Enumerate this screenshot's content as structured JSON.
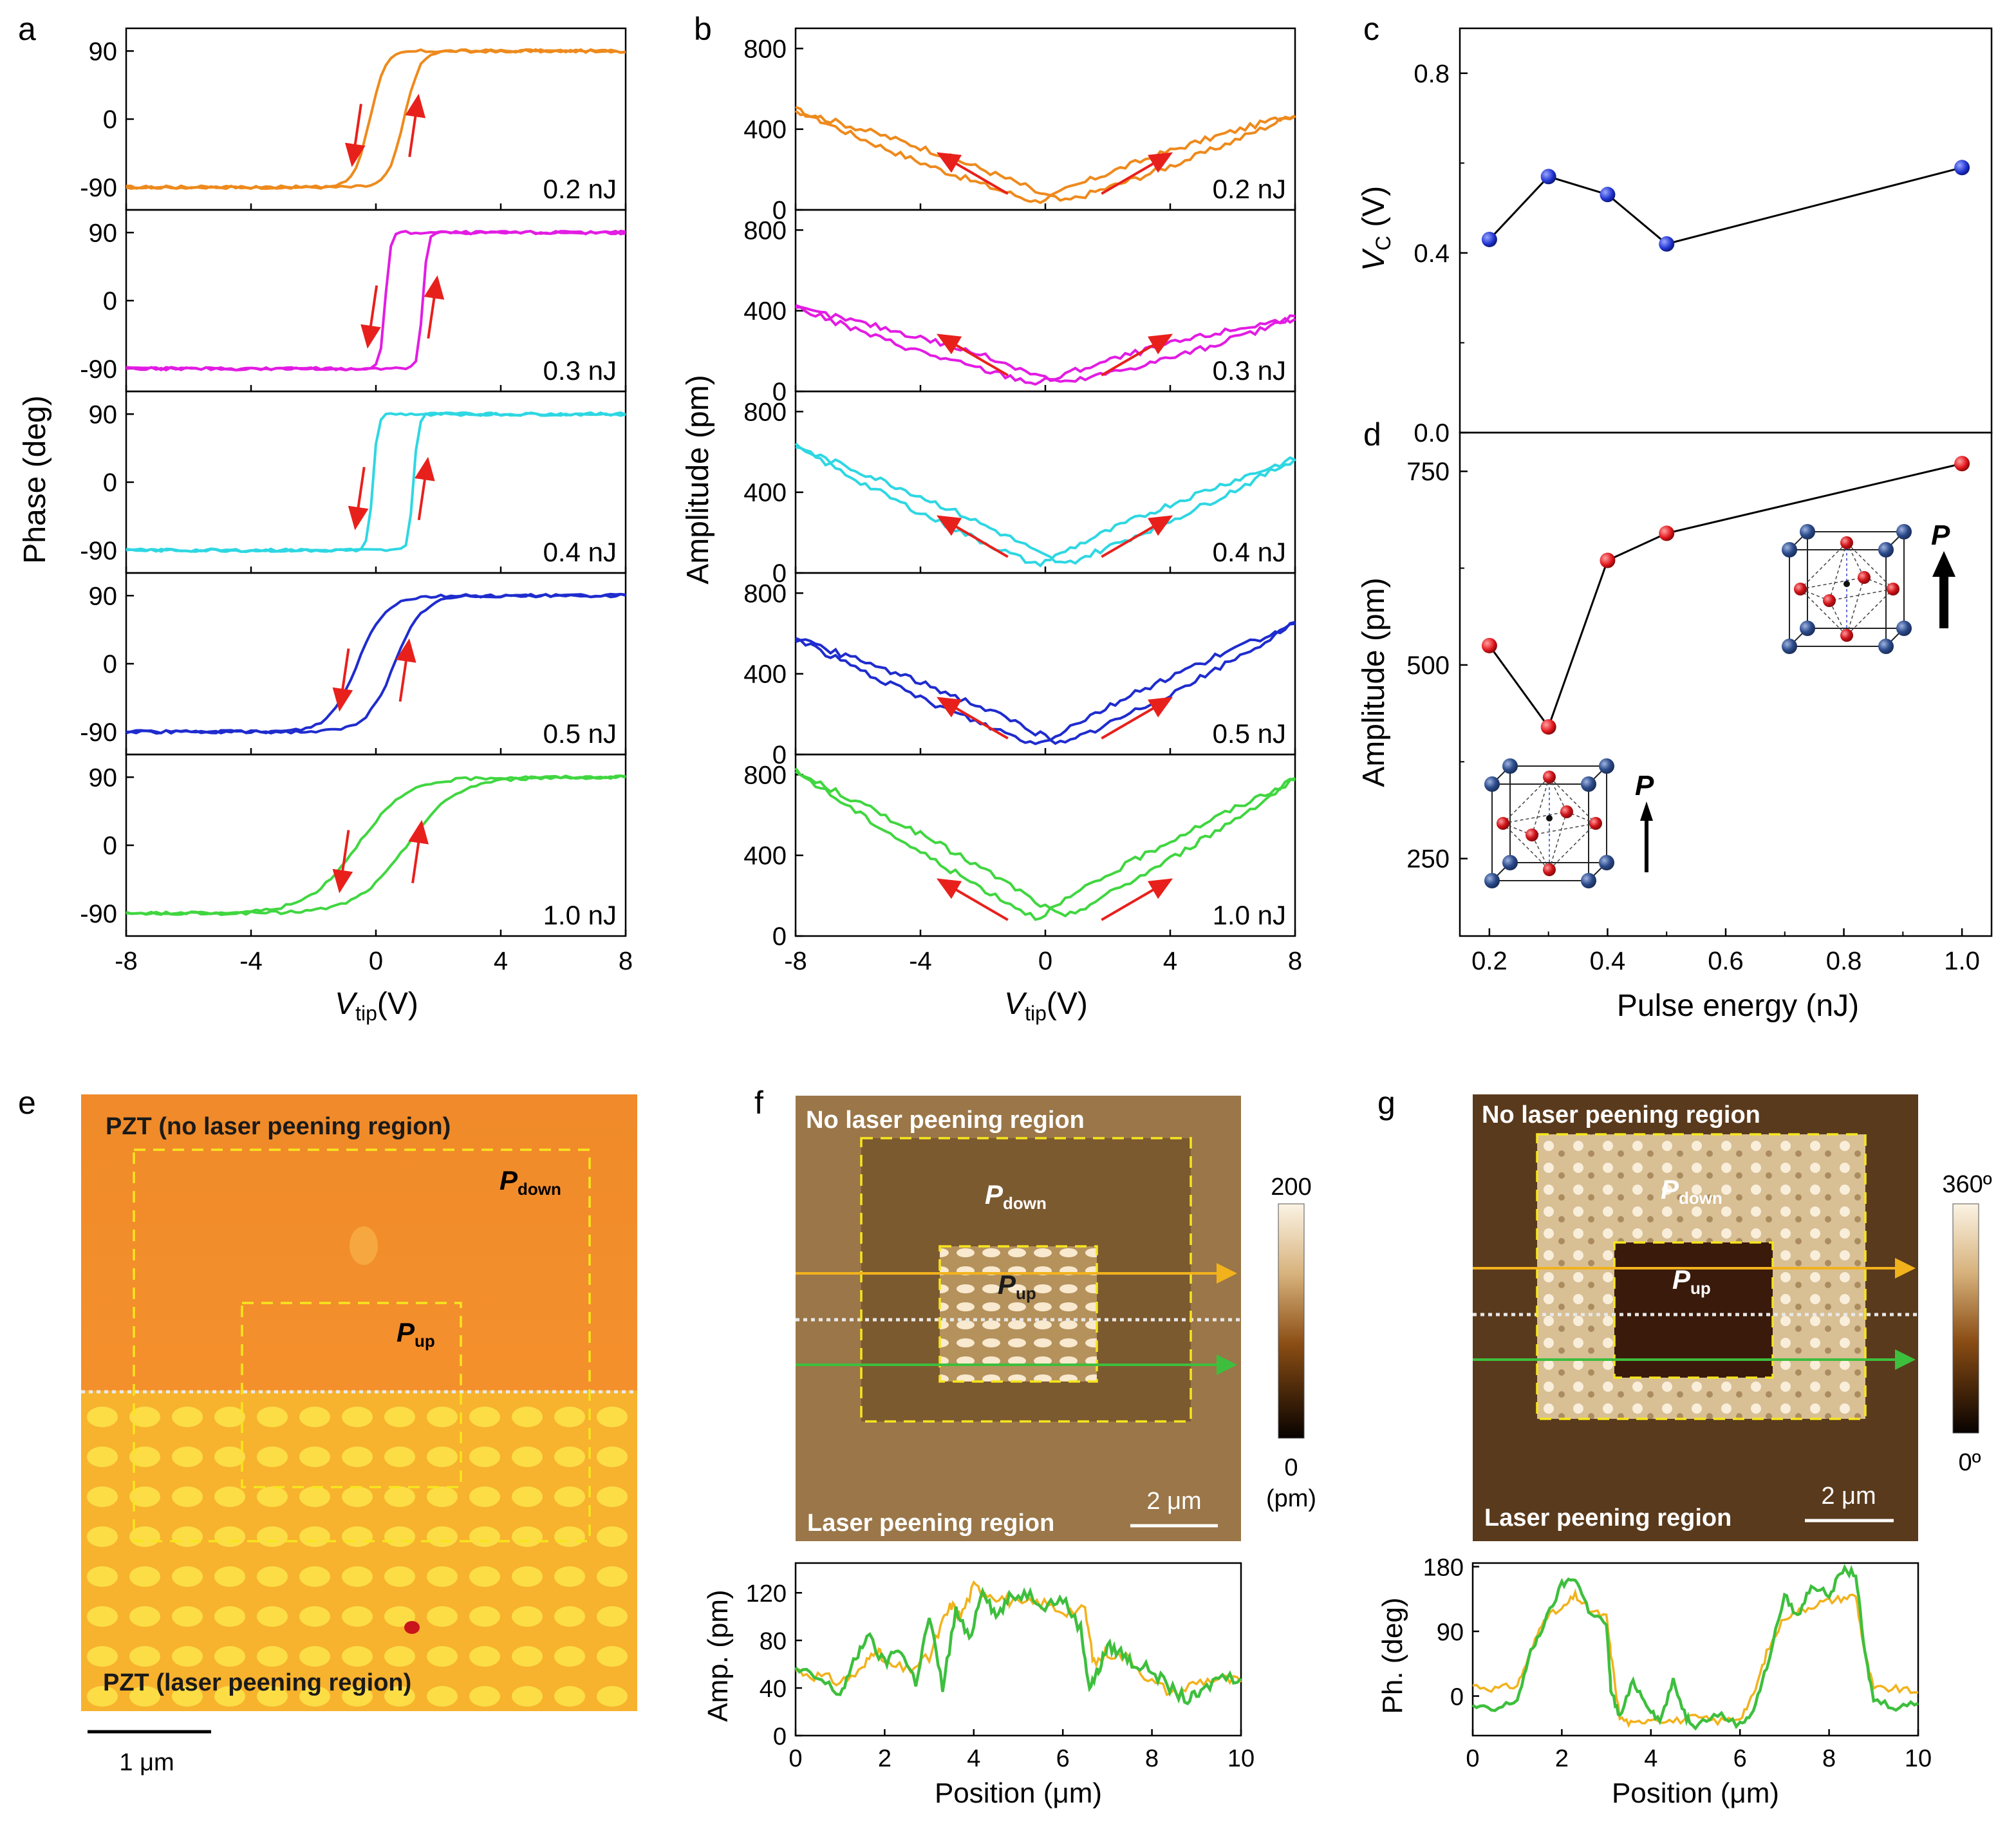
{
  "panel_letters": {
    "a": "a",
    "b": "b",
    "c": "c",
    "d": "d",
    "e": "e",
    "f": "f",
    "g": "g"
  },
  "colors": {
    "s0.2": "#EE8A1D",
    "s0.3": "#E21CE3",
    "s0.4": "#2ED7E2",
    "s0.5": "#1F2CCE",
    "s1.0": "#40D640",
    "arrow": "#E8201C",
    "blue_pt": "#1F33D0",
    "red_pt": "#E0141A",
    "orange_line": "#F2B21C",
    "green_line": "#3DBF3D",
    "dotted": "#E8E8E8",
    "dashed": "#F6E51E"
  },
  "panel_a": {
    "ylabel": "Phase (deg)",
    "xlabel_main": "V",
    "xlabel_sub": "tip",
    "xlabel_unit": "(V)",
    "xticks": [
      "-8",
      "-4",
      "0",
      "4",
      "8"
    ],
    "yticks": [
      "90",
      "0",
      "-90"
    ],
    "labels": [
      "0.2 nJ",
      "0.3 nJ",
      "0.4 nJ",
      "0.5 nJ",
      "1.0 nJ"
    ]
  },
  "panel_b": {
    "ylabel": "Amplitude (pm)",
    "xlabel_main": "V",
    "xlabel_sub": "tip",
    "xlabel_unit": "(V)",
    "xticks": [
      "-8",
      "-4",
      "0",
      "4",
      "8"
    ],
    "yticks": [
      "800",
      "400",
      "0"
    ],
    "labels": [
      "0.2 nJ",
      "0.3 nJ",
      "0.4 nJ",
      "0.5 nJ",
      "1.0 nJ"
    ]
  },
  "panel_c": {
    "ylabel_main": "V",
    "ylabel_sub": "C",
    "ylabel_unit": " (V)",
    "yticks": [
      "0.8",
      "0.4",
      "0.0"
    ]
  },
  "panel_d": {
    "ylabel": "Amplitude (pm)",
    "yticks": [
      "750",
      "500",
      "250"
    ],
    "xlabel": "Pulse energy (nJ)",
    "xticks": [
      "0.2",
      "0.4",
      "0.6",
      "0.8",
      "1.0"
    ],
    "P": "P"
  },
  "panel_e": {
    "title_top": "PZT (no laser peening region)",
    "title_bottom": "PZT (laser peening region)",
    "pdown_main": "P",
    "pdown_sub": "down",
    "pup_main": "P",
    "pup_sub": "up",
    "scalebar": "1 μm"
  },
  "panel_f": {
    "title_top": "No laser peening region",
    "title_bottom": "Laser peening region",
    "pdown_main": "P",
    "pdown_sub": "down",
    "pup_main": "P",
    "pup_sub": "up",
    "scalebar": "2 μm",
    "cbar_max": "200",
    "cbar_min": "0",
    "cbar_unit": "(pm)",
    "ylabel": "Amp. (pm)",
    "yticks": [
      "120",
      "80",
      "40",
      "0"
    ],
    "xlabel": "Position (μm)",
    "xticks": [
      "0",
      "2",
      "4",
      "6",
      "8",
      "10"
    ]
  },
  "panel_g": {
    "title_top": "No laser peening region",
    "title_bottom": "Laser peening region",
    "pdown_main": "P",
    "pdown_sub": "down",
    "pup_main": "P",
    "pup_sub": "up",
    "scalebar": "2 μm",
    "cbar_max": "360º",
    "cbar_min": "0º",
    "ylabel": "Ph. (deg)",
    "yticks": [
      "180",
      "90",
      "0"
    ],
    "xlabel": "Position (μm)",
    "xticks": [
      "0",
      "2",
      "4",
      "6",
      "8",
      "10"
    ]
  },
  "chart_data": [
    {
      "type": "line",
      "panel": "a",
      "title": "",
      "xlabel": "V_tip (V)",
      "ylabel": "Phase (deg)",
      "xlim": [
        -8,
        8
      ],
      "ylim": [
        -120,
        120
      ],
      "series": [
        {
          "name": "0.2 nJ",
          "vc_left": -0.2,
          "vc_right": 0.9,
          "width": 0.25
        },
        {
          "name": "0.3 nJ",
          "vc_left": 0.3,
          "vc_right": 1.5,
          "width": 0.08
        },
        {
          "name": "0.4 nJ",
          "vc_left": -0.1,
          "vc_right": 1.2,
          "width": 0.08
        },
        {
          "name": "0.5 nJ",
          "vc_left": -0.6,
          "vc_right": 0.6,
          "width": 0.45
        },
        {
          "name": "1.0 nJ",
          "vc_left": -0.6,
          "vc_right": 1.0,
          "width": 0.8
        }
      ]
    },
    {
      "type": "line",
      "panel": "b",
      "title": "",
      "xlabel": "V_tip (V)",
      "ylabel": "Amplitude (pm)",
      "xlim": [
        -8,
        8
      ],
      "ylim": [
        0,
        900
      ],
      "series": [
        {
          "name": "0.2 nJ",
          "amp_left": 500,
          "amp_right": 480,
          "min": 40
        },
        {
          "name": "0.3 nJ",
          "amp_left": 420,
          "amp_right": 370,
          "min": 40
        },
        {
          "name": "0.4 nJ",
          "amp_left": 630,
          "amp_right": 570,
          "min": 40
        },
        {
          "name": "0.5 nJ",
          "amp_left": 580,
          "amp_right": 650,
          "min": 50
        },
        {
          "name": "1.0 nJ",
          "amp_left": 820,
          "amp_right": 780,
          "min": 90
        }
      ]
    },
    {
      "type": "scatter",
      "panel": "c",
      "xlabel": "",
      "ylabel": "V_C (V)",
      "ylim": [
        0,
        0.9
      ],
      "x": [
        0.2,
        0.3,
        0.4,
        0.5,
        1.0
      ],
      "y": [
        0.43,
        0.57,
        0.53,
        0.42,
        0.59
      ]
    },
    {
      "type": "scatter",
      "panel": "d",
      "xlabel": "Pulse energy (nJ)",
      "ylabel": "Amplitude (pm)",
      "xlim": [
        0.15,
        1.05
      ],
      "ylim": [
        150,
        800
      ],
      "x": [
        0.2,
        0.3,
        0.4,
        0.5,
        1.0
      ],
      "y": [
        525,
        420,
        635,
        670,
        760
      ]
    },
    {
      "type": "line",
      "panel": "f-profile",
      "xlabel": "Position (μm)",
      "ylabel": "Amp. (pm)",
      "xlim": [
        0,
        10
      ],
      "ylim": [
        0,
        145
      ],
      "series": [
        {
          "name": "orange",
          "x": [
            0,
            0.5,
            1,
            1.5,
            1.8,
            2,
            2.5,
            3,
            3.3,
            3.5,
            3.7,
            4,
            4.3,
            4.7,
            5,
            5.5,
            6,
            6.5,
            6.7,
            7,
            7.5,
            8,
            8.5,
            9,
            9.5,
            10
          ],
          "y": [
            55,
            50,
            45,
            55,
            75,
            60,
            55,
            65,
            95,
            110,
            100,
            125,
            120,
            115,
            110,
            112,
            105,
            105,
            60,
            70,
            65,
            45,
            35,
            45,
            48,
            45
          ]
        },
        {
          "name": "green",
          "x": [
            0,
            0.5,
            1,
            1.3,
            1.6,
            2,
            2.3,
            2.7,
            3,
            3.3,
            3.6,
            3.9,
            4.2,
            4.5,
            4.8,
            5.2,
            5.6,
            6,
            6.4,
            6.6,
            6.8,
            7,
            7.3,
            7.6,
            8,
            8.4,
            8.8,
            9.1,
            9.5,
            10
          ],
          "y": [
            55,
            48,
            35,
            60,
            85,
            60,
            75,
            45,
            100,
            40,
            105,
            80,
            125,
            100,
            115,
            120,
            110,
            115,
            90,
            40,
            55,
            75,
            70,
            60,
            55,
            40,
            30,
            35,
            50,
            48
          ]
        }
      ]
    },
    {
      "type": "line",
      "panel": "g-profile",
      "xlabel": "Position (μm)",
      "ylabel": "Ph. (deg)",
      "xlim": [
        0,
        10
      ],
      "ylim": [
        -55,
        185
      ],
      "series": [
        {
          "name": "orange",
          "x": [
            0,
            0.5,
            1,
            1.3,
            1.6,
            2,
            2.3,
            2.6,
            3,
            3.1,
            3.3,
            3.6,
            4,
            4.5,
            5,
            5.5,
            6,
            6.3,
            6.6,
            7,
            7.4,
            7.8,
            8.2,
            8.6,
            8.8,
            9,
            9.5,
            10
          ],
          "y": [
            15,
            10,
            15,
            60,
            110,
            120,
            140,
            120,
            110,
            60,
            -30,
            -40,
            -30,
            -35,
            -30,
            -35,
            -30,
            0,
            60,
            110,
            120,
            130,
            135,
            140,
            60,
            10,
            10,
            5
          ]
        },
        {
          "name": "green",
          "x": [
            0,
            0.5,
            1,
            1.3,
            1.6,
            2,
            2.3,
            2.6,
            3,
            3.1,
            3.3,
            3.6,
            3.9,
            4.2,
            4.5,
            4.8,
            5,
            5.5,
            6,
            6.3,
            6.6,
            7,
            7.3,
            7.6,
            8,
            8.3,
            8.6,
            8.8,
            9,
            9.5,
            10
          ],
          "y": [
            -15,
            -20,
            -5,
            60,
            100,
            155,
            165,
            120,
            100,
            10,
            -30,
            20,
            -10,
            -35,
            20,
            -30,
            -40,
            -25,
            -40,
            -20,
            40,
            140,
            110,
            155,
            140,
            175,
            170,
            60,
            -5,
            -15,
            -10
          ]
        }
      ]
    }
  ]
}
